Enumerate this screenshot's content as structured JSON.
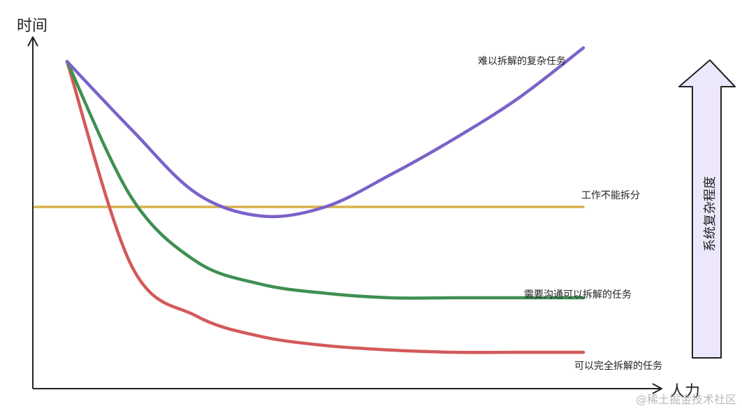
{
  "chart_data": {
    "type": "line",
    "xlabel": "人力",
    "ylabel": "时间",
    "grid": false,
    "legend": "none",
    "series": [
      {
        "key": "purple",
        "name": "难以拆解的复杂任务",
        "color": "#7b62c9",
        "x": [
          0,
          1,
          2,
          3,
          4,
          5,
          6,
          7,
          8
        ],
        "y": [
          72,
          57,
          43,
          38,
          40,
          47,
          55,
          64,
          75
        ]
      },
      {
        "key": "yellow",
        "name": "工作不能拆分",
        "color": "#d9b24a",
        "x": [
          -0.5,
          8
        ],
        "y": [
          40,
          40
        ]
      },
      {
        "key": "green",
        "name": "需要沟通可以拆解的任务",
        "color": "#3f8f52",
        "x": [
          0,
          1,
          2,
          3,
          4,
          5,
          6,
          7,
          8
        ],
        "y": [
          72,
          42,
          28,
          23,
          21,
          20,
          20,
          20,
          20
        ]
      },
      {
        "key": "red",
        "name": "可以完全拆解的任务",
        "color": "#d35a5a",
        "x": [
          0,
          1,
          2,
          3,
          4,
          5,
          6,
          7,
          8
        ],
        "y": [
          72,
          27,
          16,
          11.5,
          9.5,
          8.5,
          8,
          8,
          8
        ]
      }
    ]
  },
  "side_arrow": {
    "label": "系统复杂程度",
    "fill": "#ece7fb",
    "stroke": "#222222"
  },
  "watermark": "@稀土掘金技术社区"
}
